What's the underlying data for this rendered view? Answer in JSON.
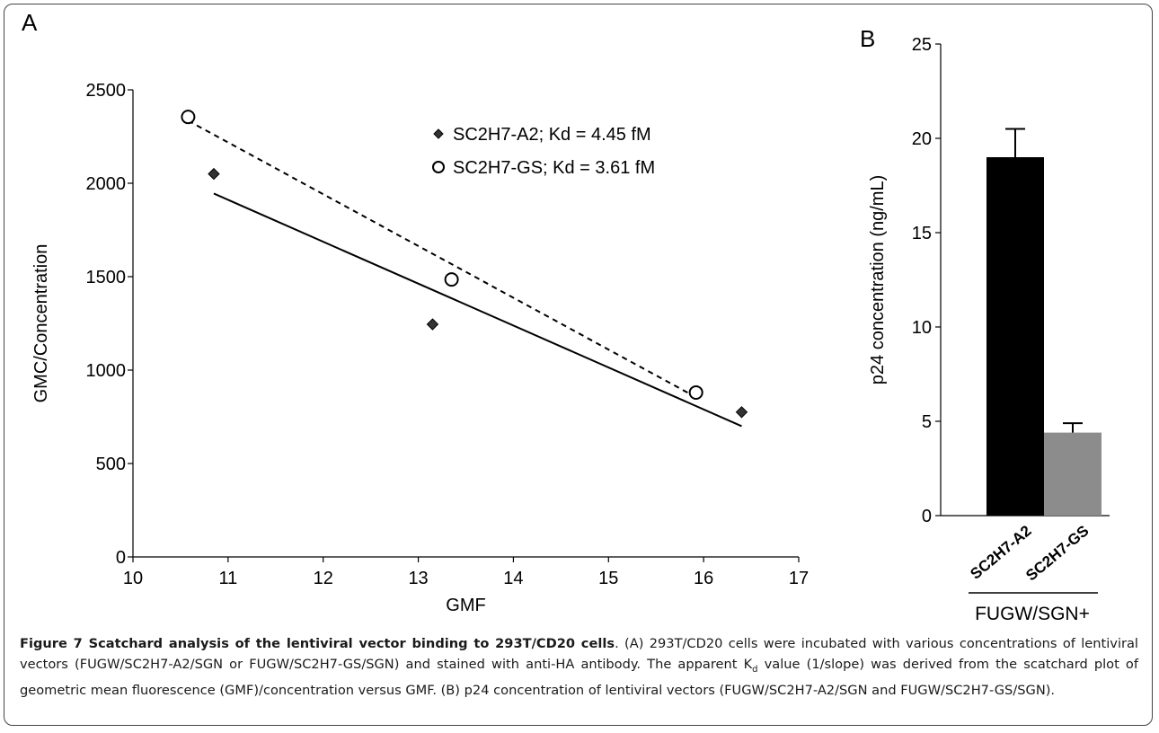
{
  "chart_data": [
    {
      "type": "scatter",
      "panel_label": "A",
      "xlabel": "GMF",
      "ylabel": "GMC/Concentration",
      "xlim": [
        10,
        17
      ],
      "ylim": [
        0,
        2500
      ],
      "x_ticks": [
        10,
        11,
        12,
        13,
        14,
        15,
        16,
        17
      ],
      "y_ticks": [
        0,
        500,
        1000,
        1500,
        2000,
        2500
      ],
      "grid": false,
      "legend_position": "top-right",
      "series": [
        {
          "name": "SC2H7-A2; Kd = 4.45 fM",
          "marker": "filled-diamond",
          "points": [
            {
              "x": 10.85,
              "y": 2050
            },
            {
              "x": 13.15,
              "y": 1245
            },
            {
              "x": 16.4,
              "y": 775
            }
          ],
          "fit": {
            "x": [
              10.85,
              16.4
            ],
            "y": [
              1945,
              700
            ],
            "style": "solid"
          }
        },
        {
          "name": "SC2H7-GS; Kd = 3.61 fM",
          "marker": "open-circle",
          "points": [
            {
              "x": 10.58,
              "y": 2355
            },
            {
              "x": 13.35,
              "y": 1485
            },
            {
              "x": 15.92,
              "y": 880
            }
          ],
          "fit": {
            "x": [
              10.58,
              15.92
            ],
            "y": [
              2335,
              855
            ],
            "style": "dashed"
          }
        }
      ]
    },
    {
      "type": "bar",
      "panel_label": "B",
      "ylabel": "p24 concentration (ng/mL)",
      "ylim": [
        0,
        25
      ],
      "y_ticks": [
        0,
        5,
        10,
        15,
        20,
        25
      ],
      "categories": [
        "SC2H7-A2",
        "SC2H7-GS"
      ],
      "values": [
        19.0,
        4.4
      ],
      "errors": [
        1.5,
        0.5
      ],
      "colors": [
        "#000000",
        "#8c8c8c"
      ],
      "group_label": "FUGW/SGN+"
    }
  ],
  "caption": {
    "title": "Figure 7 Scatchard analysis of the lentiviral vector binding to 293T/CD20 cells",
    "body_1": ". (A) 293T/CD20 cells were incubated with various concentrations of lentiviral vectors (FUGW/SC2H7-A2/SGN or FUGW/SC2H7-GS/SGN) and stained with anti-HA antibody. The apparent K",
    "subscript": "d",
    "body_2": " value (1/slope) was derived from the scatchard plot of geometric mean fluorescence (GMF)/concentration versus GMF. (B) p24 concentration of lentiviral vectors (FUGW/SC2H7-A2/SGN and FUGW/SC2H7-GS/SGN)."
  }
}
